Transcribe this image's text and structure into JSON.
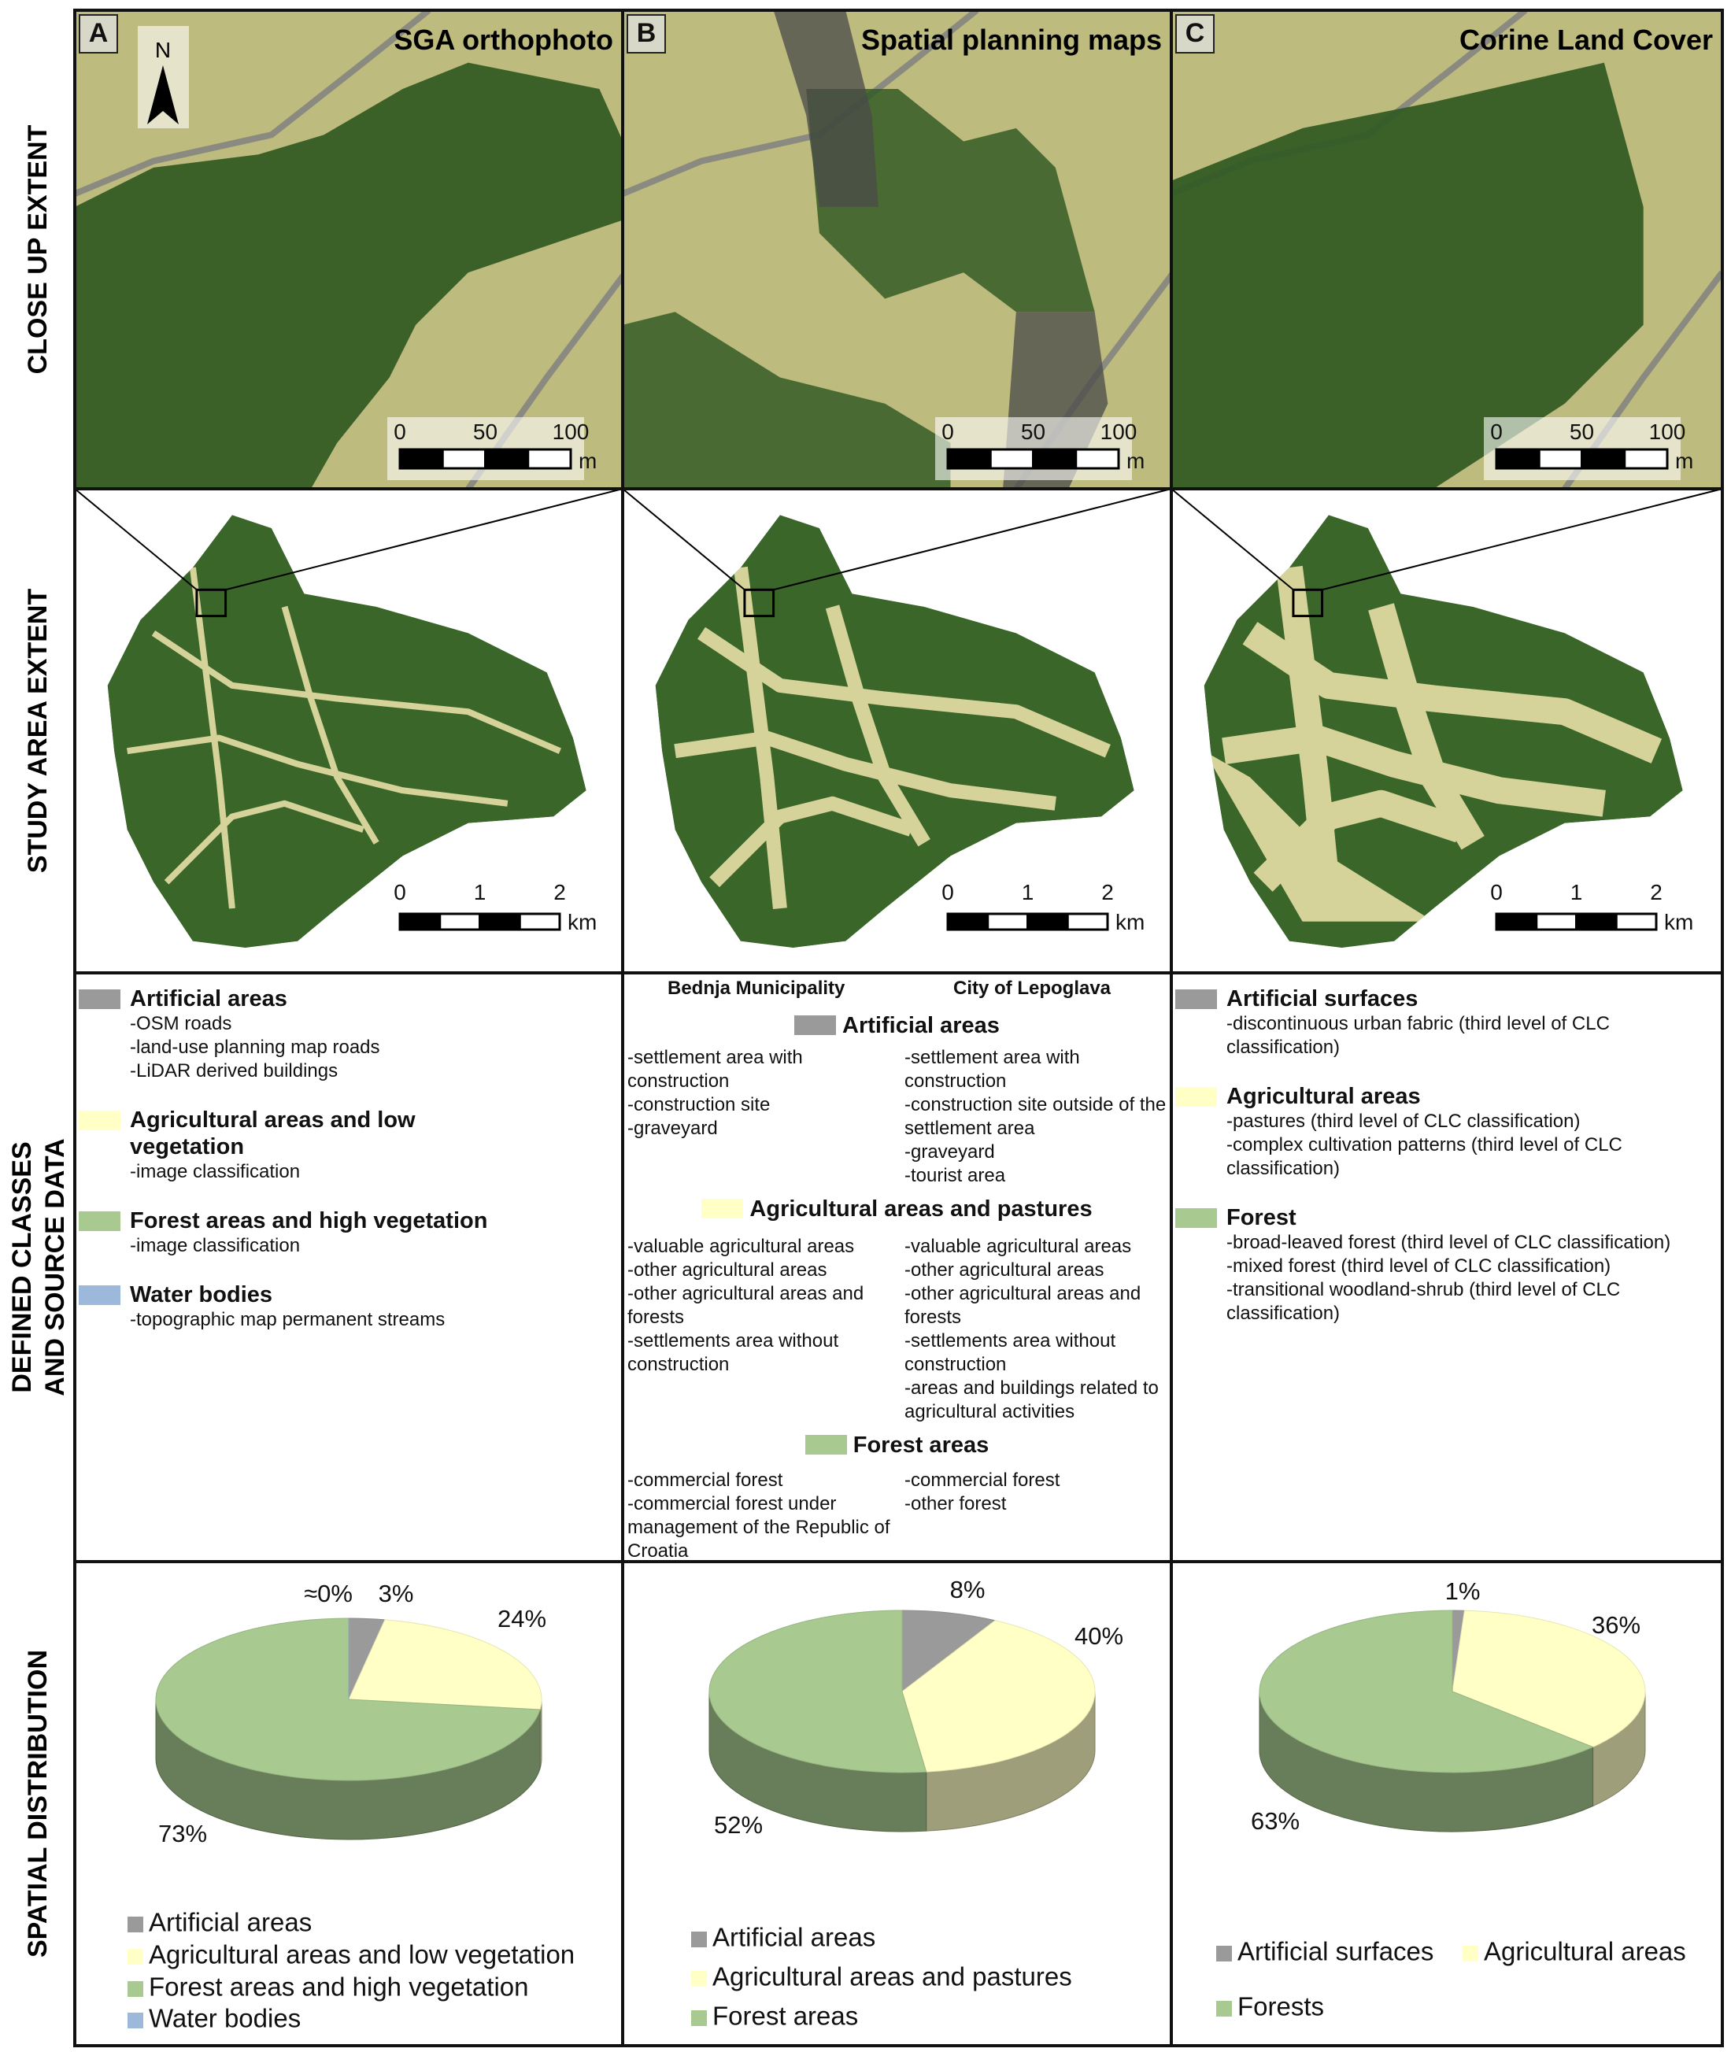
{
  "row_labels": [
    [
      "CLOSE UP EXTENT"
    ],
    [
      "STUDY AREA EXTENT"
    ],
    [
      "DEFINED CLASSES",
      "AND SOURCE DATA"
    ],
    [
      "SPATIAL DISTRIBUTION"
    ]
  ],
  "north_label": "N",
  "panels": [
    {
      "letter": "A",
      "title": "SGA orthophoto",
      "closeup_scale": {
        "ticks": [
          0,
          50,
          100
        ],
        "unit": "m"
      },
      "study_scale": {
        "ticks": [
          0,
          1,
          2
        ],
        "unit": "km"
      },
      "classes": [
        {
          "name": "Artificial areas",
          "color": "#9a9a9a",
          "items": [
            "-OSM roads",
            "-land-use planning map roads",
            "-LiDAR derived buildings"
          ]
        },
        {
          "name": "Agricultural areas and low vegetation",
          "color": "#ffffc6",
          "items": [
            "-image classification"
          ]
        },
        {
          "name": "Forest areas and high vegetation",
          "color": "#a8c98f",
          "items": [
            "-image classification"
          ]
        },
        {
          "name": "Water bodies",
          "color": "#9cb9dc",
          "items": [
            "-topographic map permanent streams"
          ]
        }
      ],
      "pie": {
        "categories": [
          "Artificial areas",
          "Agricultural areas and low vegetation",
          "Forest areas and high vegetation",
          "Water bodies"
        ],
        "colors": [
          "#9a9a9a",
          "#ffffc6",
          "#a8c98f",
          "#9cb9dc"
        ],
        "values": [
          3,
          24,
          73,
          0
        ],
        "value_labels": [
          "3%",
          "24%",
          "73%",
          "≈0%"
        ]
      }
    },
    {
      "letter": "B",
      "title": "Spatial planning maps",
      "closeup_scale": {
        "ticks": [
          0,
          50,
          100
        ],
        "unit": "m"
      },
      "study_scale": {
        "ticks": [
          0,
          1,
          2
        ],
        "unit": "km"
      },
      "class_columns": [
        "Bednja Municipality",
        "City of Lepoglava"
      ],
      "classes": [
        {
          "name": "Artificial areas",
          "color": "#9a9a9a",
          "items_left": [
            "-settlement area with construction",
            "-construction site",
            "-graveyard"
          ],
          "items_right": [
            "-settlement area with construction",
            "-construction site outside of the settlement area",
            "-graveyard",
            "-tourist area"
          ]
        },
        {
          "name": "Agricultural areas and pastures",
          "color": "#ffffc6",
          "items_left": [
            "-valuable agricultural areas",
            "-other agricultural areas",
            "-other agricultural areas and forests",
            "-settlements area without construction"
          ],
          "items_right": [
            "-valuable agricultural areas",
            "-other agricultural areas",
            "-other agricultural areas and forests",
            "-settlements area without construction",
            "-areas and buildings related to agricultural activities"
          ]
        },
        {
          "name": "Forest areas",
          "color": "#a8c98f",
          "items_left": [
            "-commercial forest",
            "-commercial forest under management of the Republic of Croatia"
          ],
          "items_right": [
            "-commercial forest",
            "-other forest"
          ]
        }
      ],
      "pie": {
        "categories": [
          "Artificial areas",
          "Agricultural areas and pastures",
          "Forest areas"
        ],
        "colors": [
          "#9a9a9a",
          "#ffffc6",
          "#a8c98f"
        ],
        "values": [
          8,
          40,
          52
        ],
        "value_labels": [
          "8%",
          "40%",
          "52%"
        ]
      }
    },
    {
      "letter": "C",
      "title": "Corine Land Cover",
      "closeup_scale": {
        "ticks": [
          0,
          50,
          100
        ],
        "unit": "m"
      },
      "study_scale": {
        "ticks": [
          0,
          1,
          2
        ],
        "unit": "km"
      },
      "classes": [
        {
          "name": "Artificial surfaces",
          "color": "#9a9a9a",
          "items": [
            "-discontinuous urban fabric (third level of CLC classification)"
          ]
        },
        {
          "name": "Agricultural areas",
          "color": "#ffffc6",
          "items": [
            "-pastures (third level of CLC classification)",
            "-complex cultivation patterns (third level of CLC classification)"
          ]
        },
        {
          "name": "Forest",
          "color": "#a8c98f",
          "items": [
            "-broad-leaved forest (third level of CLC classification)",
            "-mixed forest (third level of CLC classification)",
            "-transitional woodland-shrub (third level of CLC classification)"
          ]
        }
      ],
      "pie": {
        "categories": [
          "Artificial surfaces",
          "Agricultural areas",
          "Forests"
        ],
        "colors": [
          "#9a9a9a",
          "#ffffc6",
          "#a8c98f"
        ],
        "values": [
          1,
          36,
          63
        ],
        "value_labels": [
          "1%",
          "36%",
          "63%"
        ]
      }
    }
  ]
}
